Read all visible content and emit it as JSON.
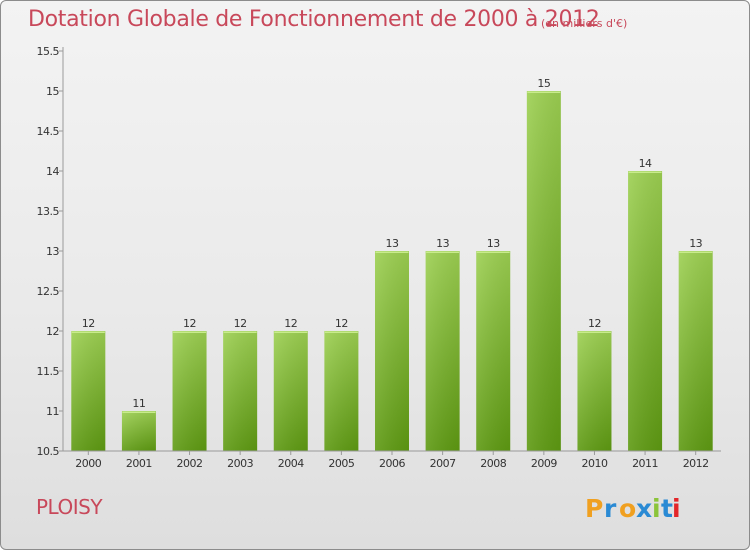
{
  "page": {
    "title": "Dotation Globale de Fonctionnement de 2000 à 2012",
    "subtitle": "(en milliers d'€)",
    "commune": "PLOISY",
    "logo_text": "Proxiti",
    "colors": {
      "title": "#c8485a",
      "bar_top": "#9dd052",
      "bar_bottom": "#5e9a12",
      "logo_letters": [
        "#f0a020",
        "#2a8ad4",
        "#f0a020",
        "#2a8ad4",
        "#8bc43a",
        "#2a8ad4",
        "#e3262a"
      ]
    }
  },
  "chart_data": {
    "type": "bar",
    "categories": [
      "2000",
      "2001",
      "2002",
      "2003",
      "2004",
      "2005",
      "2006",
      "2007",
      "2008",
      "2009",
      "2010",
      "2011",
      "2012"
    ],
    "values": [
      12,
      11,
      12,
      12,
      12,
      12,
      13,
      13,
      13,
      15,
      12,
      14,
      13
    ],
    "data_labels": [
      "12",
      "11",
      "12",
      "12",
      "12",
      "12",
      "13",
      "13",
      "13",
      "15",
      "12",
      "14",
      "13"
    ],
    "yticks": [
      10.5,
      11,
      11.5,
      12,
      12.5,
      13,
      13.5,
      14,
      14.5,
      15,
      15.5
    ],
    "ytick_labels": [
      "10.5",
      "11",
      "11.5",
      "12",
      "12.5",
      "13",
      "13.5",
      "14",
      "14.5",
      "15",
      "15.5"
    ],
    "ylim": [
      10.5,
      15.5
    ],
    "grid": false,
    "legend": "none"
  }
}
